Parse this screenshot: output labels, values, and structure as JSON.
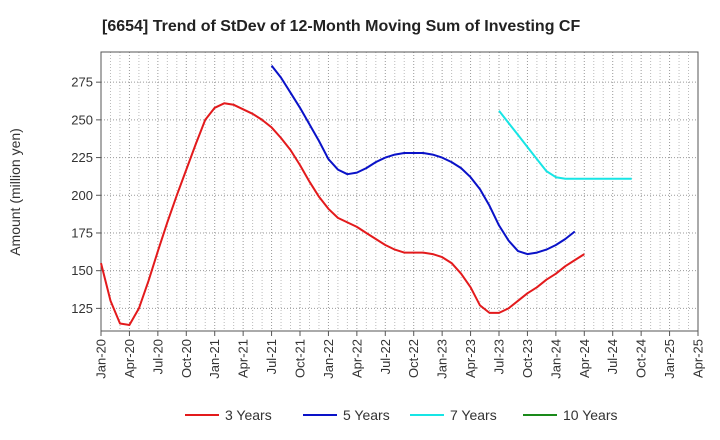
{
  "chart_data": {
    "type": "line",
    "title": "[6654]  Trend of StDev of 12-Month Moving Sum of Investing CF",
    "ylabel": "Amount (million yen)",
    "xlabel": "",
    "ylim": [
      110,
      295
    ],
    "yticks": [
      125,
      150,
      175,
      200,
      225,
      250,
      275
    ],
    "x_ticks": [
      "Jan-20",
      "Apr-20",
      "Jul-20",
      "Oct-20",
      "Jan-21",
      "Apr-21",
      "Jul-21",
      "Oct-21",
      "Jan-22",
      "Apr-22",
      "Jul-22",
      "Oct-22",
      "Jan-23",
      "Apr-23",
      "Jul-23",
      "Oct-23",
      "Jan-24",
      "Apr-24",
      "Jul-24",
      "Oct-24",
      "Jan-25",
      "Apr-25"
    ],
    "grid": true,
    "legend_position": "bottom",
    "series": [
      {
        "name": "3 Years",
        "color": "#e31a1c",
        "start": "Jan-20",
        "values": [
          155,
          130,
          115,
          114,
          125,
          143,
          163,
          182,
          200,
          217,
          234,
          250,
          258,
          261,
          260,
          257,
          254,
          250,
          245,
          238,
          230,
          220,
          209,
          199,
          191,
          185,
          182,
          179,
          175,
          171,
          167,
          164,
          162,
          162,
          162,
          161,
          159,
          155,
          148,
          139,
          127,
          122,
          122,
          125,
          130,
          135,
          139,
          144,
          148,
          153,
          157,
          161
        ]
      },
      {
        "name": "5 Years",
        "color": "#0a12c8",
        "start": "Jul-21",
        "values": [
          286,
          278,
          268,
          258,
          247,
          236,
          224,
          217,
          214,
          215,
          218,
          222,
          225,
          227,
          228,
          228,
          228,
          227,
          225,
          222,
          218,
          212,
          204,
          193,
          180,
          170,
          163,
          161,
          162,
          164,
          167,
          171,
          176
        ]
      },
      {
        "name": "7 Years",
        "color": "#17e5e5",
        "start": "Jul-23",
        "values": [
          256,
          248,
          240,
          232,
          224,
          216,
          212,
          211,
          211,
          211,
          211,
          211,
          211,
          211,
          211
        ]
      },
      {
        "name": "10 Years",
        "color": "#1a8a1a",
        "start": "Jul-23",
        "values": []
      }
    ]
  }
}
